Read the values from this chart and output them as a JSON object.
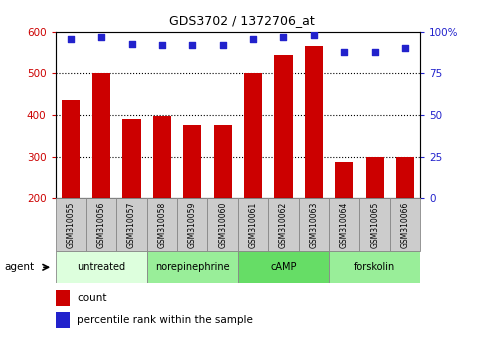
{
  "title": "GDS3702 / 1372706_at",
  "samples": [
    "GSM310055",
    "GSM310056",
    "GSM310057",
    "GSM310058",
    "GSM310059",
    "GSM310060",
    "GSM310061",
    "GSM310062",
    "GSM310063",
    "GSM310064",
    "GSM310065",
    "GSM310066"
  ],
  "counts": [
    437,
    500,
    390,
    398,
    375,
    375,
    500,
    545,
    567,
    288,
    300,
    300
  ],
  "percentile_ranks": [
    96,
    97,
    93,
    92,
    92,
    92,
    96,
    97,
    98,
    88,
    88,
    90
  ],
  "bar_color": "#cc0000",
  "dot_color": "#2222cc",
  "ylim_left": [
    200,
    600
  ],
  "ylim_right": [
    0,
    100
  ],
  "yticks_left": [
    200,
    300,
    400,
    500,
    600
  ],
  "yticks_right": [
    0,
    25,
    50,
    75,
    100
  ],
  "ylabel_right_labels": [
    "0",
    "25",
    "50",
    "75",
    "100%"
  ],
  "groups": [
    {
      "label": "untreated",
      "start": 0,
      "end": 3,
      "color": "#ddffdd"
    },
    {
      "label": "norepinephrine",
      "start": 3,
      "end": 6,
      "color": "#99ee99"
    },
    {
      "label": "cAMP",
      "start": 6,
      "end": 9,
      "color": "#66dd66"
    },
    {
      "label": "forskolin",
      "start": 9,
      "end": 12,
      "color": "#99ee99"
    }
  ],
  "agent_label": "agent",
  "legend_count_label": "count",
  "legend_pct_label": "percentile rank within the sample",
  "background_color": "#ffffff",
  "plot_bg_color": "#ffffff",
  "grid_color": "#000000",
  "tick_label_color_left": "#cc0000",
  "tick_label_color_right": "#2222cc",
  "bar_bottom": 200,
  "bar_width": 0.6,
  "sample_box_color": "#cccccc",
  "sample_box_edge": "#888888"
}
